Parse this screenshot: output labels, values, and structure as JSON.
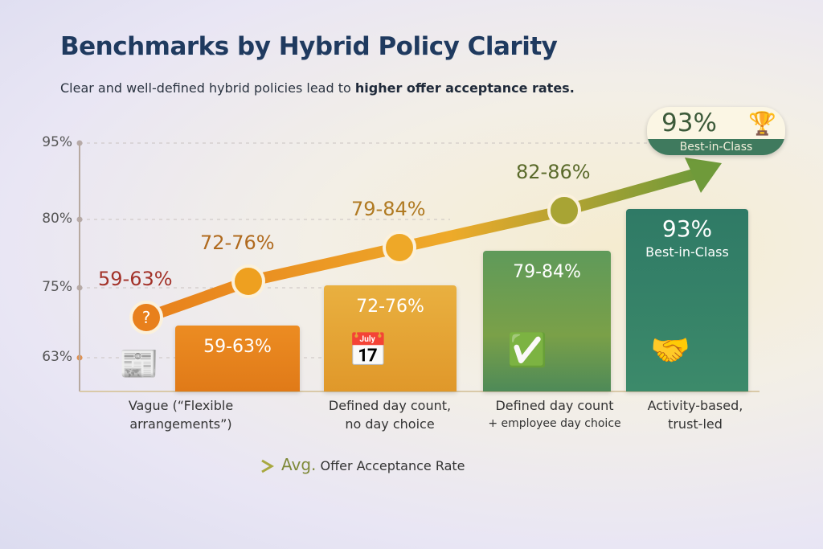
{
  "header": {
    "title": "Benchmarks by Hybrid Policy Clarity",
    "subtitle_plain": "Clear and well-defined hybrid policies lead to ",
    "subtitle_bold": "higher offer acceptance rates."
  },
  "chart_data": {
    "type": "bar",
    "y_ticks": [
      "95%",
      "80%",
      "75%",
      "63%"
    ],
    "categories": [
      "Vague (“Flexible arrangements”)",
      "Defined day count, no day choice",
      "Defined day count + employee day choice",
      "Activity-based, trust-led"
    ],
    "category_lines": [
      [
        "Vague (“Flexible",
        "arrangements”)"
      ],
      [
        "Defined day count,",
        "no day choice"
      ],
      [
        "Defined day count",
        "+ employee day choice"
      ],
      [
        "Activity-based,",
        "trust-led"
      ]
    ],
    "bars": [
      {
        "label": "59-63%",
        "low": 59,
        "high": 63
      },
      {
        "label": "72-76%",
        "low": 72,
        "high": 76
      },
      {
        "label": "79-84%",
        "low": 79,
        "high": 84
      },
      {
        "label": "93%",
        "sublabel": "Best-in-Class",
        "low": 93,
        "high": 93
      }
    ],
    "line": {
      "name": "Avg. Offer Acceptance Rate",
      "points": [
        {
          "label": "59-63%",
          "low": 59,
          "high": 63
        },
        {
          "label": "72-76%",
          "low": 72,
          "high": 76
        },
        {
          "label": "79-84%",
          "low": 79,
          "high": 84
        },
        {
          "label": "82-86%",
          "low": 82,
          "high": 86
        }
      ]
    },
    "top_badge": {
      "value": "93%",
      "label": "Best-in-Class",
      "icon": "trophy-icon"
    },
    "legend": {
      "prefix": "Avg.",
      "text": "Offer Acceptance Rate",
      "placement": "bottom-left"
    },
    "grid": "dashed horizontal",
    "colors": [
      "#e8841f",
      "#e6a832",
      "#5e9553",
      "#2f7a63"
    ]
  }
}
